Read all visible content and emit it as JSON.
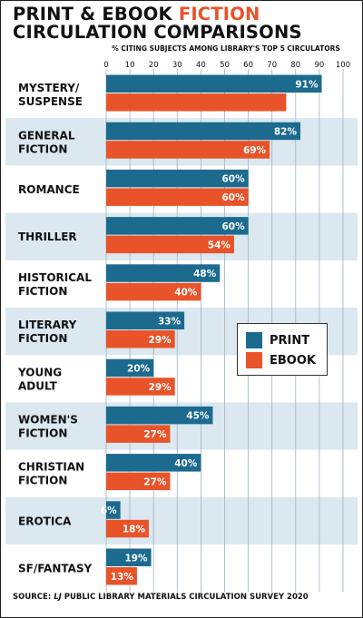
{
  "title": {
    "part1": "PRINT & EBOOK ",
    "accent": "FICTION",
    "line2": "CIRCULATION COMPARISONS"
  },
  "colors": {
    "print": "#1d6a8f",
    "ebook": "#e8532a",
    "band": "#dbe8f0",
    "grid": "#9fb2bf"
  },
  "source": {
    "prefix": "SOURCE: ",
    "lj": "LJ",
    "rest": " PUBLIC LIBRARY MATERIALS CIRCULATION SURVEY 2020"
  },
  "chart_data": {
    "type": "bar",
    "orientation": "horizontal",
    "xlabel": "% CITING SUBJECTS AMONG LIBRARY'S TOP 5 CIRCULATORS",
    "xlim": [
      0,
      100
    ],
    "ticks": [
      0,
      10,
      20,
      30,
      40,
      50,
      60,
      70,
      80,
      90,
      100
    ],
    "grid": true,
    "legend_position": "right",
    "categories": [
      [
        "MYSTERY/",
        "SUSPENSE"
      ],
      [
        "GENERAL",
        "FICTION"
      ],
      [
        "ROMANCE"
      ],
      [
        "THRILLER"
      ],
      [
        "HISTORICAL",
        "FICTION"
      ],
      [
        "LITERARY",
        "FICTION"
      ],
      [
        "YOUNG",
        "ADULT"
      ],
      [
        "WOMEN'S",
        "FICTION"
      ],
      [
        "CHRISTIAN",
        "FICTION"
      ],
      [
        "EROTICA"
      ],
      [
        "SF/FANTASY"
      ]
    ],
    "series": [
      {
        "name": "PRINT",
        "values": [
          91,
          82,
          60,
          60,
          48,
          33,
          20,
          45,
          40,
          6,
          19
        ],
        "labels": [
          "91%",
          "82%",
          "60%",
          "60%",
          "48%",
          "33%",
          "20%",
          "45%",
          "40%",
          "6%",
          "19%"
        ]
      },
      {
        "name": "EBOOK",
        "values": [
          null,
          69,
          60,
          54,
          40,
          29,
          29,
          27,
          27,
          18,
          13
        ],
        "labels": [
          null,
          "69%",
          "60%",
          "54%",
          "40%",
          "29%",
          "29%",
          "27%",
          "27%",
          "18%",
          "13%"
        ]
      }
    ]
  }
}
